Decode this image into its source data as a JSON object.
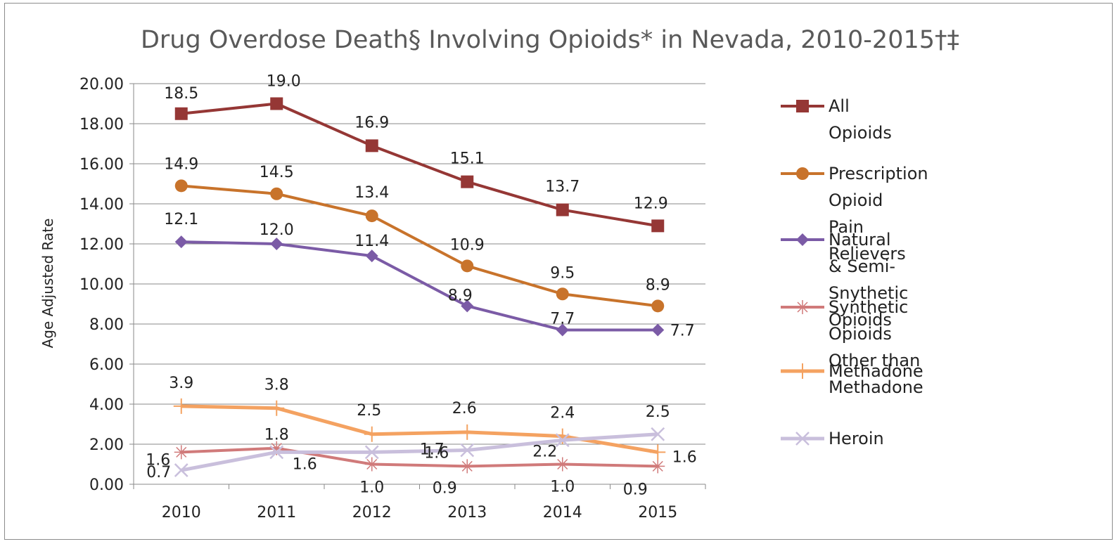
{
  "chart_data": {
    "type": "line",
    "title": "Drug Overdose Death§ Involving Opioids* in Nevada, 2010-2015†‡",
    "xlabel": "",
    "ylabel": "Age Adjusted Rate",
    "categories": [
      "2010",
      "2011",
      "2012",
      "2013",
      "2014",
      "2015"
    ],
    "ylim": [
      0,
      20
    ],
    "yticks": [
      "0.00",
      "2.00",
      "4.00",
      "6.00",
      "8.00",
      "10.00",
      "12.00",
      "14.00",
      "16.00",
      "18.00",
      "20.00"
    ],
    "grid": true,
    "legend_position": "right",
    "series": [
      {
        "name": "All Opioids",
        "values": [
          18.5,
          19.0,
          16.9,
          15.1,
          13.7,
          12.9
        ],
        "labels": [
          "18.5",
          "19.0",
          "16.9",
          "15.1",
          "13.7",
          "12.9"
        ],
        "color": "#953735",
        "marker": "square"
      },
      {
        "name": "Prescription Opioid Pain Relievers",
        "values": [
          14.9,
          14.5,
          13.4,
          10.9,
          9.5,
          8.9
        ],
        "labels": [
          "14.9",
          "14.5",
          "13.4",
          "10.9",
          "9.5",
          "8.9"
        ],
        "color": "#c8732b",
        "marker": "circle"
      },
      {
        "name": "Natural & Semi-Snythetic Opioids",
        "values": [
          12.1,
          12.0,
          11.4,
          8.9,
          7.7,
          7.7
        ],
        "labels": [
          "12.1",
          "12.0",
          "11.4",
          "8.9",
          "7.7",
          "7.7"
        ],
        "color": "#7b5ba6",
        "marker": "diamond"
      },
      {
        "name": "Synthetic Opioids Other than Methadone",
        "values": [
          1.6,
          1.8,
          1.0,
          0.9,
          1.0,
          0.9
        ],
        "labels": [
          "1.6",
          "1.8",
          "1.0",
          "0.9",
          "1.0",
          "0.9"
        ],
        "color": "#d07a7a",
        "marker": "star"
      },
      {
        "name": "Methadone",
        "values": [
          3.9,
          3.8,
          2.5,
          2.6,
          2.4,
          1.6
        ],
        "labels": [
          "3.9",
          "3.8",
          "2.5",
          "2.6",
          "2.4",
          "1.6"
        ],
        "color": "#f4a261",
        "marker": "plus"
      },
      {
        "name": "Heroin",
        "values": [
          0.7,
          1.6,
          1.6,
          1.7,
          2.2,
          2.5
        ],
        "labels": [
          "0.7",
          "1.6",
          "1.6",
          "1.7",
          "2.2",
          "2.5"
        ],
        "color": "#c9bfdc",
        "marker": "x"
      }
    ],
    "legend_text": [
      "All Opioids",
      "Prescription Opioid\nPain Relievers",
      "Natural & Semi-\nSnythetic Opioids",
      "Synthetic Opioids\nOther than Methadone",
      "Methadone",
      "Heroin"
    ]
  }
}
